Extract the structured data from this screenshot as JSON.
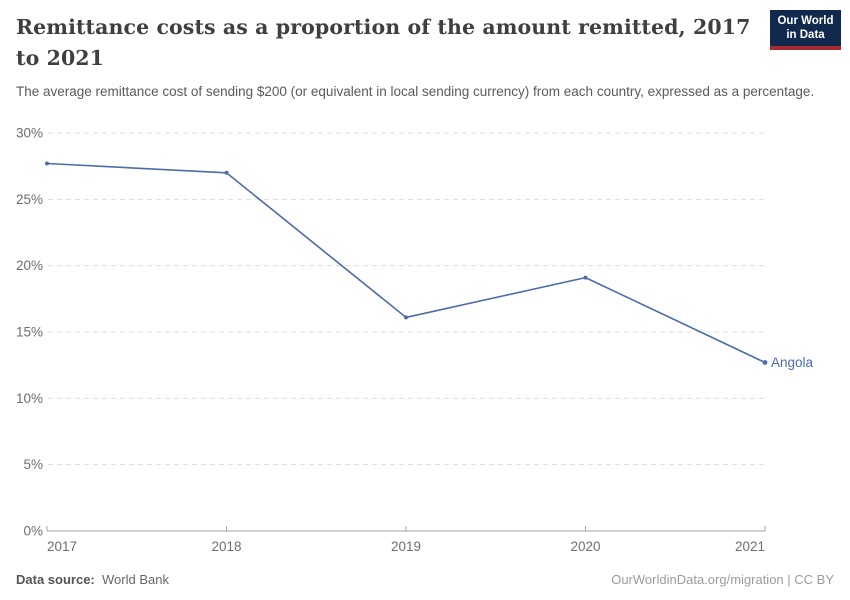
{
  "header": {
    "title": "Remittance costs as a proportion of the amount remitted, 2017 to 2021",
    "subtitle": "The average remittance cost of sending $200 (or equivalent in local sending currency) from each country, expressed as a percentage.",
    "logo": {
      "line1": "Our World",
      "line2": "in Data",
      "bg_color": "#12294e",
      "accent_color": "#a52b31"
    }
  },
  "chart_data": {
    "type": "line",
    "title": "Remittance costs as a proportion of the amount remitted, 2017 to 2021",
    "x": [
      2017,
      2018,
      2019,
      2020,
      2021
    ],
    "x_tick_labels": [
      "2017",
      "2018",
      "2019",
      "2020",
      "2021"
    ],
    "series": [
      {
        "name": "Angola",
        "values": [
          27.7,
          27.0,
          16.1,
          19.1,
          12.7
        ],
        "color": "#4c6cab"
      }
    ],
    "xlabel": "",
    "ylabel": "",
    "ylim": [
      0,
      30
    ],
    "yticks": [
      0,
      5,
      10,
      15,
      20,
      25,
      30
    ],
    "ytick_suffix": "%",
    "grid": "horizontal-dashed",
    "legend": "end-of-line-label"
  },
  "footer": {
    "source_label": "Data source:",
    "source_value": "World Bank",
    "credit": "OurWorldinData.org/migration | CC BY"
  },
  "colors": {
    "line": "#4c6cab",
    "grid": "#dddddd",
    "axis": "#a3a3a3",
    "tick_label": "#6e6e6e",
    "title": "#3f3f3f",
    "subtitle": "#5a5a5a",
    "credit": "#9c9c9c"
  }
}
